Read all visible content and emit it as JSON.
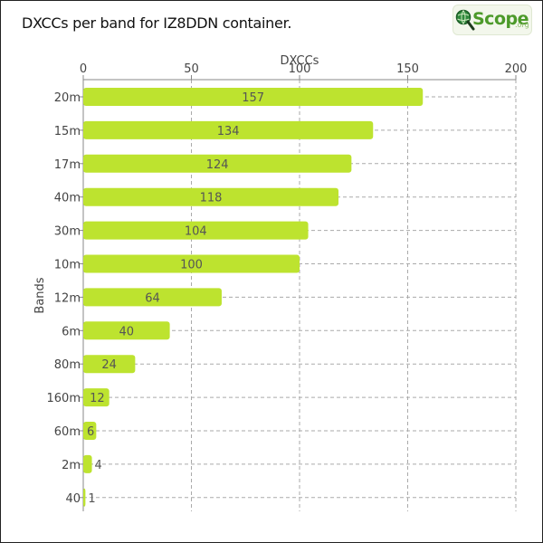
{
  "title": "DXCCs per band for IZ8DDN container.",
  "logo": {
    "text": "Scope",
    "suffix": ".org",
    "icon": "magnifier-globe-icon"
  },
  "colors": {
    "bar": "#bde32f",
    "grid": "#aaaaaa",
    "axis": "#888888",
    "text": "#444444"
  },
  "chart_data": {
    "type": "bar",
    "orientation": "horizontal",
    "title": "DXCCs per band for IZ8DDN container.",
    "xlabel": "DXCCs",
    "ylabel": "Bands",
    "xlim": [
      0,
      200
    ],
    "xticks": [
      0,
      50,
      100,
      150,
      200
    ],
    "x_axis_position": "top",
    "grid": true,
    "categories": [
      "20m",
      "15m",
      "17m",
      "40m",
      "30m",
      "10m",
      "12m",
      "6m",
      "80m",
      "160m",
      "60m",
      "2m",
      "40"
    ],
    "values": [
      157,
      134,
      124,
      118,
      104,
      100,
      64,
      40,
      24,
      12,
      6,
      4,
      1
    ],
    "data_labels": [
      "157",
      "134",
      "124",
      "118",
      "104",
      "100",
      "64",
      "40",
      "24",
      "12",
      "6",
      "4",
      "1"
    ]
  }
}
